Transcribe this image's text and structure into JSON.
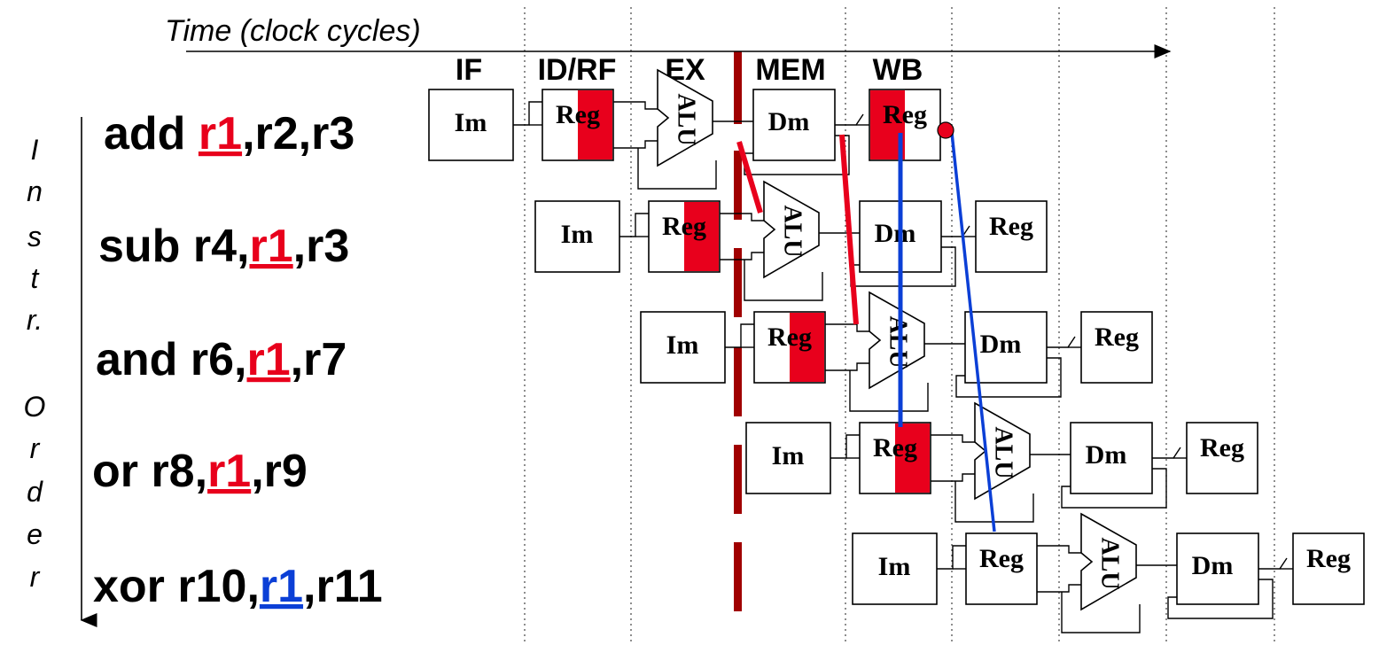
{
  "time_axis": {
    "label": "Time (clock cycles)"
  },
  "stages": [
    "IF",
    "ID/RF",
    "EX",
    "MEM",
    "WB"
  ],
  "order_axis": {
    "letters": [
      "I",
      "n",
      "s",
      "t",
      "r.",
      "O",
      "r",
      "d",
      "e",
      "r"
    ]
  },
  "instructions": [
    {
      "pre": "add ",
      "reg": "r1",
      "post": ",r2,r3",
      "reg_color": "#e8001c"
    },
    {
      "pre": "sub r4,",
      "reg": "r1",
      "post": ",r3",
      "reg_color": "#e8001c"
    },
    {
      "pre": "and r6,",
      "reg": "r1",
      "post": ",r7",
      "reg_color": "#e8001c"
    },
    {
      "pre": "or   r8,",
      "reg": "r1",
      "post": ",r9",
      "reg_color": "#e8001c"
    },
    {
      "pre": "xor r10,",
      "reg": "r1",
      "post": ",r11",
      "reg_color": "#0b3fd6"
    }
  ],
  "block_labels": {
    "im": "Im",
    "reg": "Reg",
    "alu": "ALU",
    "dm": "Dm"
  },
  "colors": {
    "hazard_fill": "#e8001c",
    "cycle_boundary": "#a00000",
    "forward_red": "#e8001c",
    "forward_blue": "#0b3fd6"
  }
}
